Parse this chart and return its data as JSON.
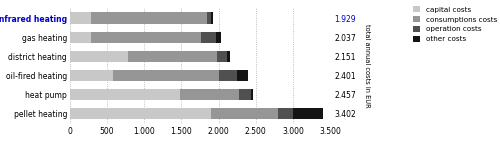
{
  "categories": [
    "pellet heating",
    "heat pump",
    "oil-fired heating",
    "district heating",
    "gas heating",
    "Infrared heating"
  ],
  "totals_labels": [
    "3.402",
    "2.457",
    "2.401",
    "2.151",
    "2.037",
    "1.929"
  ],
  "totals_label_colors": [
    "black",
    "black",
    "black",
    "black",
    "black",
    "#0000cc"
  ],
  "segments": {
    "capital costs": [
      1900,
      1480,
      580,
      780,
      280,
      280
    ],
    "consumptions costs": [
      900,
      800,
      1430,
      1200,
      1480,
      1570
    ],
    "operation costs": [
      200,
      150,
      240,
      130,
      200,
      50
    ],
    "other costs": [
      402,
      27,
      151,
      41,
      77,
      29
    ]
  },
  "colors": {
    "capital costs": "#c8c8c8",
    "consumptions costs": "#969696",
    "operation costs": "#505050",
    "other costs": "#141414"
  },
  "first_label_color": "#0000cc",
  "xlim": [
    0,
    3500
  ],
  "xticks": [
    0,
    500,
    1000,
    1500,
    2000,
    2500,
    3000,
    3500
  ],
  "xtick_labels": [
    "0",
    "500",
    "1.000",
    "1.500",
    "2.000",
    "2.500",
    "3.000",
    "3.500"
  ],
  "ylabel": "total annual costs in EUR",
  "background_color": "#ffffff",
  "grid_color": "#aaaaaa"
}
